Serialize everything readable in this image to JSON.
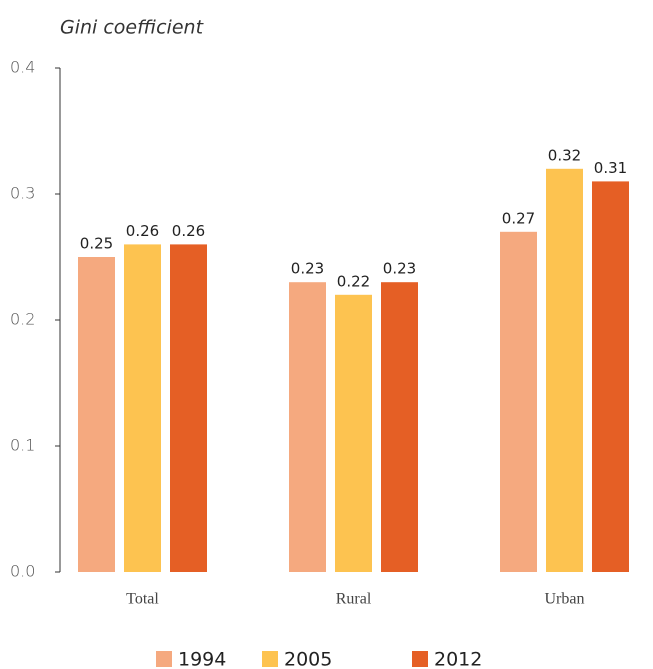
{
  "chart_data": {
    "type": "bar",
    "y_label": "Gini coefficient",
    "categories": [
      "Total",
      "Rural",
      "Urban"
    ],
    "series": [
      {
        "name": "1994",
        "color": "#f5a97f",
        "values": [
          0.25,
          0.23,
          0.27
        ]
      },
      {
        "name": "2005",
        "color": "#fdc350",
        "values": [
          0.26,
          0.22,
          0.32
        ]
      },
      {
        "name": "2012",
        "color": "#e55f25",
        "values": [
          0.26,
          0.23,
          0.31
        ]
      }
    ],
    "ylim": [
      0,
      0.4
    ],
    "yticks": [
      {
        "value": 0,
        "label": "0.0"
      },
      0.1,
      0.2,
      0.3,
      0.4
    ],
    "grid": false
  }
}
